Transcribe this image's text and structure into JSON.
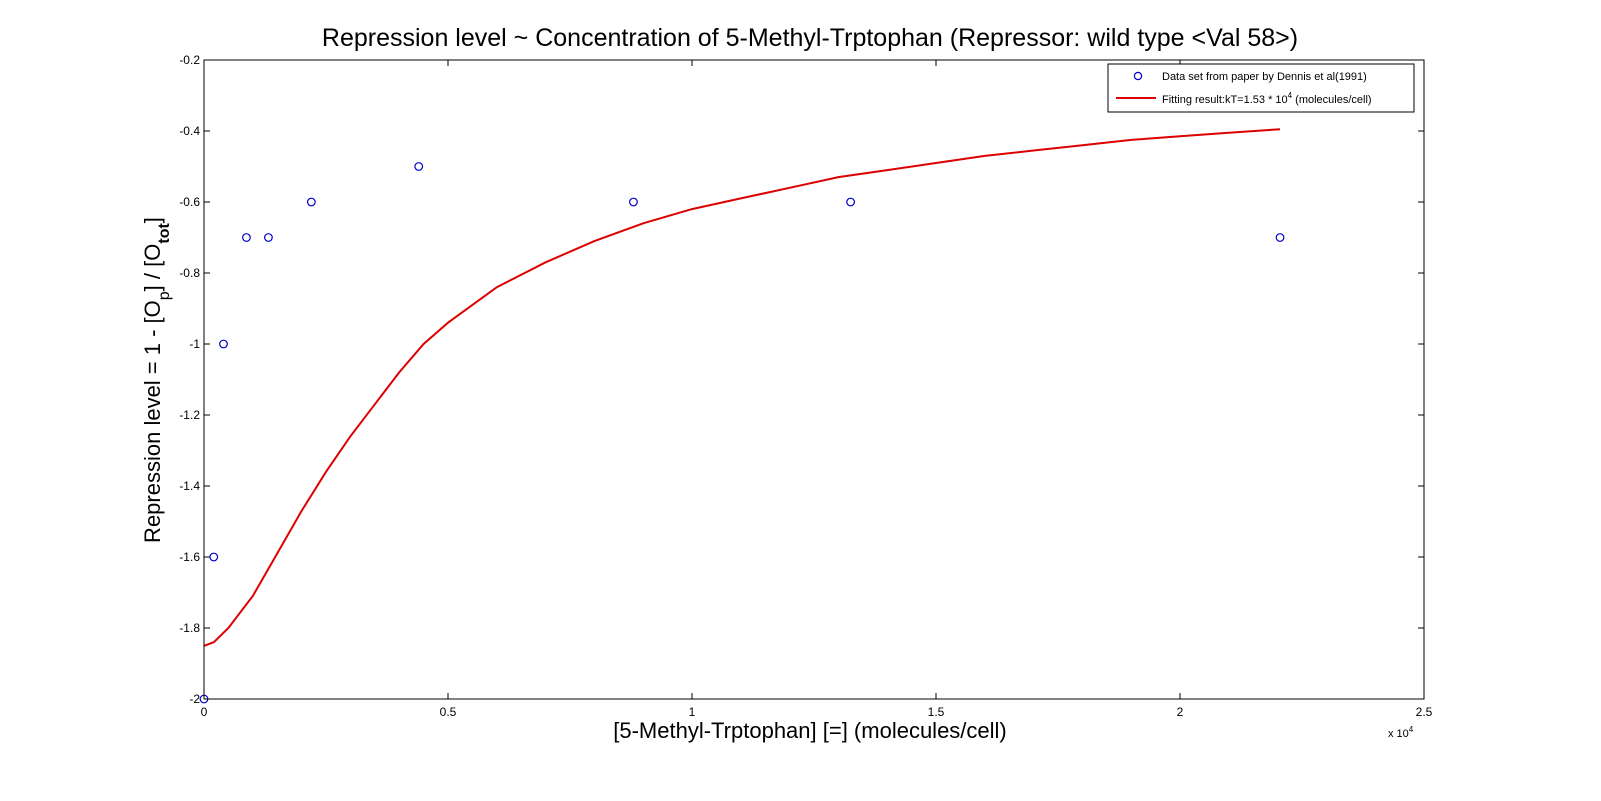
{
  "chart_data": {
    "type": "scatter",
    "title": "Repression level ~ Concentration of 5-Methyl-Trptophan (Repressor: wild type <Val 58>)",
    "xlabel": "[5-Methyl-Trptophan] [=] (molecules/cell)",
    "ylabel": {
      "prefix": "Repression level = 1 - [O",
      "sub1": "p",
      "middle": "] / [O",
      "sub2": "tot",
      "suffix": "]"
    },
    "xlim": [
      0,
      25000
    ],
    "ylim": [
      -2,
      -0.2
    ],
    "x_ticks": [
      0,
      5000,
      10000,
      15000,
      20000,
      25000
    ],
    "x_tick_labels": [
      "0",
      "0.5",
      "1",
      "1.5",
      "2",
      "2.5"
    ],
    "x_multiplier": {
      "base": "x 10",
      "exp": "4"
    },
    "y_ticks": [
      -2,
      -1.8,
      -1.6,
      -1.4,
      -1.2,
      -1,
      -0.8,
      -0.6,
      -0.4,
      -0.2
    ],
    "y_tick_labels": [
      "-2",
      "-1.8",
      "-1.6",
      "-1.4",
      "-1.2",
      "-1",
      "-0.8",
      "-0.6",
      "-0.4",
      "-0.2"
    ],
    "grid": false,
    "legend_position": "top-right",
    "series": [
      {
        "name": "Data set from paper by Dennis et al(1991)",
        "kind": "scatter",
        "marker": "circle-open",
        "color": "#0000cc",
        "x": [
          0,
          200,
          400,
          870,
          1320,
          2200,
          4400,
          8800,
          13250,
          22050
        ],
        "y": [
          -2.0,
          -1.6,
          -1.0,
          -0.7,
          -0.7,
          -0.6,
          -0.5,
          -0.6,
          -0.6,
          -0.7
        ]
      },
      {
        "name_prefix": "Fitting result:kT=1.53 * 10",
        "name_exp": "4",
        "name_suffix": " (molecules/cell)",
        "kind": "line",
        "color": "#dd0000",
        "x": [
          0,
          200,
          500,
          1000,
          1500,
          2000,
          2500,
          3000,
          3500,
          4000,
          4500,
          5000,
          6000,
          7000,
          8000,
          9000,
          10000,
          11000,
          12000,
          13000,
          14000,
          15000,
          16000,
          17000,
          18000,
          19000,
          20000,
          21000,
          22050
        ],
        "y": [
          -1.85,
          -1.84,
          -1.8,
          -1.71,
          -1.59,
          -1.47,
          -1.36,
          -1.26,
          -1.17,
          -1.08,
          -1.0,
          -0.94,
          -0.84,
          -0.77,
          -0.71,
          -0.66,
          -0.62,
          -0.59,
          -0.56,
          -0.53,
          -0.51,
          -0.49,
          -0.47,
          -0.455,
          -0.44,
          -0.425,
          -0.415,
          -0.405,
          -0.395
        ]
      }
    ]
  }
}
